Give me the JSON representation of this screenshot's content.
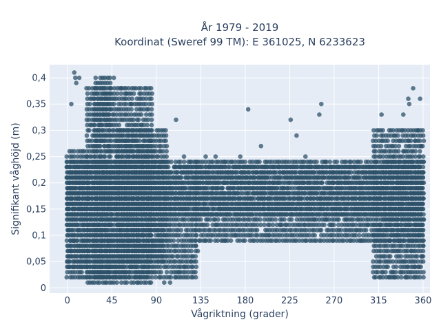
{
  "chart_data": {
    "type": "scatter",
    "title": "År 1979 - 2019",
    "subtitle": "Koordinat (Sweref 99 TM): E 361025, N 6233623",
    "xlabel": "Vågriktning (grader)",
    "ylabel": "Signifikant våghöjd (m)",
    "xlim": [
      -18,
      367
    ],
    "ylim": [
      -0.01,
      0.425
    ],
    "x_ticks": [
      0,
      45,
      90,
      135,
      180,
      225,
      270,
      315,
      360
    ],
    "x_tick_labels": [
      "0",
      "45",
      "90",
      "135",
      "180",
      "225",
      "270",
      "315",
      "360"
    ],
    "y_ticks": [
      0,
      0.05,
      0.1,
      0.15,
      0.2,
      0.25,
      0.3,
      0.35,
      0.4
    ],
    "y_tick_labels": [
      "0",
      "0,05",
      "0,1",
      "0,15",
      "0,2",
      "0,25",
      "0,3",
      "0,35",
      "0,4"
    ],
    "grid": true,
    "legend": "none",
    "marker_color": "#2e5169",
    "plot_bg": "#e5ecf6",
    "density_regions": [
      {
        "x": [
          0,
          360
        ],
        "y": [
          0.14,
          0.23
        ]
      },
      {
        "x": [
          0,
          130
        ],
        "y": [
          0.02,
          0.24
        ]
      },
      {
        "x": [
          20,
          85
        ],
        "y": [
          0.01,
          0.38
        ]
      },
      {
        "x": [
          28,
          45
        ],
        "y": [
          0.02,
          0.4
        ]
      },
      {
        "x": [
          50,
          100
        ],
        "y": [
          0.05,
          0.3
        ]
      },
      {
        "x": [
          0,
          20
        ],
        "y": [
          0.04,
          0.26
        ]
      },
      {
        "x": [
          130,
          360
        ],
        "y": [
          0.09,
          0.24
        ]
      },
      {
        "x": [
          310,
          360
        ],
        "y": [
          0.02,
          0.3
        ]
      }
    ],
    "points": [
      [
        7,
        0.41
      ],
      [
        8,
        0.4
      ],
      [
        12,
        0.4
      ],
      [
        9,
        0.39
      ],
      [
        4,
        0.35
      ],
      [
        47,
        0.4
      ],
      [
        55,
        0.38
      ],
      [
        60,
        0.37
      ],
      [
        65,
        0.35
      ],
      [
        70,
        0.33
      ],
      [
        75,
        0.31
      ],
      [
        80,
        0.3
      ],
      [
        84,
        0.28
      ],
      [
        88,
        0.26
      ],
      [
        95,
        0.24
      ],
      [
        100,
        0.22
      ],
      [
        104,
        0.2
      ],
      [
        110,
        0.32
      ],
      [
        118,
        0.25
      ],
      [
        125,
        0.24
      ],
      [
        132,
        0.24
      ],
      [
        140,
        0.25
      ],
      [
        150,
        0.25
      ],
      [
        160,
        0.24
      ],
      [
        163,
        0.22
      ],
      [
        175,
        0.25
      ],
      [
        183,
        0.34
      ],
      [
        196,
        0.27
      ],
      [
        200,
        0.23
      ],
      [
        226,
        0.32
      ],
      [
        232,
        0.29
      ],
      [
        240,
        0.23
      ],
      [
        241,
        0.25
      ],
      [
        255,
        0.33
      ],
      [
        257,
        0.35
      ],
      [
        261,
        0.24
      ],
      [
        290,
        0.23
      ],
      [
        305,
        0.23
      ],
      [
        304,
        0.12
      ],
      [
        318,
        0.33
      ],
      [
        330,
        0.25
      ],
      [
        335,
        0.23
      ],
      [
        340,
        0.33
      ],
      [
        345,
        0.36
      ],
      [
        346,
        0.35
      ],
      [
        350,
        0.38
      ],
      [
        352,
        0.28
      ],
      [
        355,
        0.3
      ],
      [
        357,
        0.36
      ],
      [
        358,
        0.27
      ],
      [
        345,
        0.28
      ],
      [
        340,
        0.26
      ],
      [
        334,
        0.21
      ],
      [
        334,
        0.1
      ],
      [
        336,
        0.09
      ],
      [
        334,
        0.07
      ],
      [
        341,
        0.05
      ],
      [
        344,
        0.04
      ],
      [
        349,
        0.09
      ],
      [
        348,
        0.07
      ],
      [
        352,
        0.04
      ],
      [
        354,
        0.06
      ],
      [
        356,
        0.04
      ],
      [
        359,
        0.06
      ],
      [
        355,
        0.1
      ],
      [
        353,
        0.12
      ],
      [
        360,
        0.08
      ],
      [
        322,
        0.03
      ],
      [
        326,
        0.02
      ],
      [
        331,
        0.02
      ],
      [
        338,
        0.03
      ],
      [
        342,
        0.02
      ],
      [
        329,
        0.03
      ],
      [
        170,
        0.1
      ],
      [
        185,
        0.1
      ],
      [
        204,
        0.1
      ],
      [
        215,
        0.12
      ],
      [
        240,
        0.12
      ],
      [
        262,
        0.13
      ],
      [
        268,
        0.12
      ],
      [
        282,
        0.13
      ],
      [
        293,
        0.11
      ],
      [
        298,
        0.09
      ],
      [
        310,
        0.1
      ],
      [
        260,
        0.09
      ],
      [
        140,
        0.09
      ],
      [
        132,
        0.07
      ],
      [
        130,
        0.08
      ],
      [
        125,
        0.05
      ],
      [
        118,
        0.04
      ],
      [
        113,
        0.03
      ],
      [
        109,
        0.02
      ],
      [
        104,
        0.01
      ],
      [
        98,
        0.01
      ],
      [
        150,
        0.12
      ],
      [
        155,
        0.15
      ],
      [
        250,
        0.13
      ],
      [
        160,
        0.09
      ]
    ]
  }
}
